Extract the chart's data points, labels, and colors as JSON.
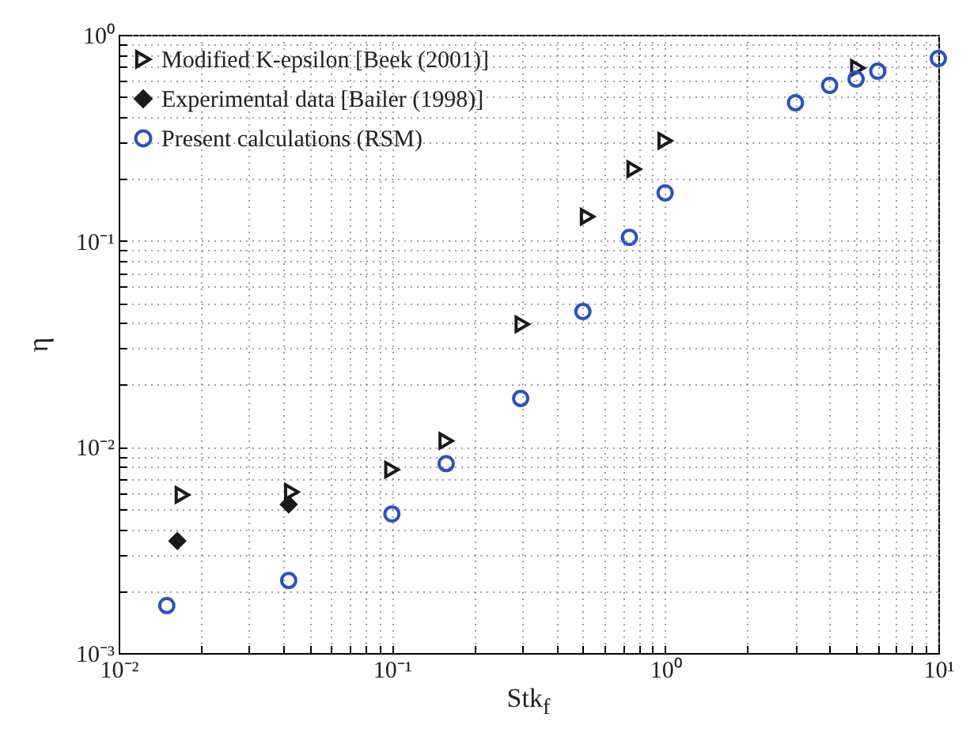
{
  "chart_data": {
    "type": "scatter",
    "xlabel": "Stk$_{f}$",
    "ylabel": "η",
    "log": "xy",
    "grid": true,
    "legend": "top left",
    "xlim": [
      0.01,
      10
    ],
    "ylim": [
      0.001,
      1
    ],
    "xticks": [
      {
        "value": 0.01,
        "label": "10⁻²"
      },
      {
        "value": 0.02,
        "label": null
      },
      {
        "value": 0.03,
        "label": null
      },
      {
        "value": 0.04,
        "label": null
      },
      {
        "value": 0.05,
        "label": null
      },
      {
        "value": 0.06,
        "label": null
      },
      {
        "value": 0.07,
        "label": null
      },
      {
        "value": 0.08,
        "label": null
      },
      {
        "value": 0.09,
        "label": null
      },
      {
        "value": 0.1,
        "label": "10⁻¹"
      },
      {
        "value": 0.2,
        "label": null
      },
      {
        "value": 0.3,
        "label": null
      },
      {
        "value": 0.4,
        "label": null
      },
      {
        "value": 0.5,
        "label": null
      },
      {
        "value": 0.6,
        "label": null
      },
      {
        "value": 0.7,
        "label": null
      },
      {
        "value": 0.8,
        "label": null
      },
      {
        "value": 0.9,
        "label": null
      },
      {
        "value": 1,
        "label": "10⁰"
      },
      {
        "value": 2,
        "label": null
      },
      {
        "value": 3,
        "label": null
      },
      {
        "value": 4,
        "label": null
      },
      {
        "value": 5,
        "label": null
      },
      {
        "value": 6,
        "label": null
      },
      {
        "value": 7,
        "label": null
      },
      {
        "value": 8,
        "label": null
      },
      {
        "value": 9,
        "label": null
      },
      {
        "value": 10,
        "label": "10¹"
      }
    ],
    "yticks": [
      {
        "value": 0.001,
        "label": "10⁻³"
      },
      {
        "value": 0.002,
        "label": null
      },
      {
        "value": 0.003,
        "label": null
      },
      {
        "value": 0.004,
        "label": null
      },
      {
        "value": 0.005,
        "label": null
      },
      {
        "value": 0.006,
        "label": null
      },
      {
        "value": 0.007,
        "label": null
      },
      {
        "value": 0.008,
        "label": null
      },
      {
        "value": 0.009,
        "label": null
      },
      {
        "value": 0.01,
        "label": "10⁻²"
      },
      {
        "value": 0.02,
        "label": null
      },
      {
        "value": 0.03,
        "label": null
      },
      {
        "value": 0.04,
        "label": null
      },
      {
        "value": 0.05,
        "label": null
      },
      {
        "value": 0.06,
        "label": null
      },
      {
        "value": 0.07,
        "label": null
      },
      {
        "value": 0.08,
        "label": null
      },
      {
        "value": 0.09,
        "label": null
      },
      {
        "value": 0.1,
        "label": "10⁻¹"
      },
      {
        "value": 0.2,
        "label": null
      },
      {
        "value": 0.3,
        "label": null
      },
      {
        "value": 0.4,
        "label": null
      },
      {
        "value": 0.5,
        "label": null
      },
      {
        "value": 0.6,
        "label": null
      },
      {
        "value": 0.7,
        "label": null
      },
      {
        "value": 0.8,
        "label": null
      },
      {
        "value": 0.9,
        "label": null
      },
      {
        "value": 1,
        "label": "10⁰"
      }
    ],
    "series": [
      {
        "name": "Modified K-epsilon [Beek (2001)]",
        "color": "#1a1a1a",
        "marker": "triangle",
        "x": [
          0.0171,
          0.043,
          0.1,
          0.158,
          0.3,
          0.52,
          0.77,
          1.0,
          5.07
        ],
        "values": [
          0.00585,
          0.00605,
          0.00776,
          0.0107,
          0.0394,
          0.131,
          0.223,
          0.306,
          0.69
        ]
      },
      {
        "name": "Experimental data [Bailer (1998)]",
        "color": "#1a1a1a",
        "marker": "diamond",
        "x": [
          0.0164,
          0.0419
        ],
        "values": [
          0.0035,
          0.00526
        ]
      },
      {
        "name": "Present calculations (RSM)",
        "color": "#2a52be",
        "marker": "circle",
        "x": [
          0.015,
          0.0419,
          0.1,
          0.158,
          0.296,
          0.5,
          0.74,
          1.0,
          3,
          4,
          5,
          6,
          10
        ],
        "values": [
          0.0017,
          0.00225,
          0.00473,
          0.0083,
          0.0172,
          0.0454,
          0.104,
          0.171,
          0.468,
          0.568,
          0.61,
          0.666,
          0.767
        ]
      }
    ]
  }
}
